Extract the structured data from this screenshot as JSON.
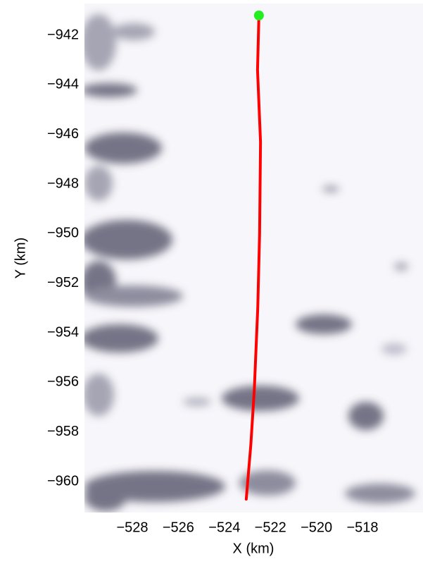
{
  "chart_data": {
    "type": "line",
    "xlabel": "X (km)",
    "ylabel": "Y (km)",
    "xlim": [
      -530.08,
      -515.37
    ],
    "ylim": [
      -961.25,
      -940.72
    ],
    "xticks": [
      {
        "value": -528,
        "label": "−528"
      },
      {
        "value": -526,
        "label": "−526"
      },
      {
        "value": -524,
        "label": "−524"
      },
      {
        "value": -522,
        "label": "−522"
      },
      {
        "value": -520,
        "label": "−520"
      },
      {
        "value": -518,
        "label": "−518"
      }
    ],
    "yticks": [
      {
        "value": -942,
        "label": "−942"
      },
      {
        "value": -944,
        "label": "−944"
      },
      {
        "value": -946,
        "label": "−946"
      },
      {
        "value": -948,
        "label": "−948"
      },
      {
        "value": -950,
        "label": "−950"
      },
      {
        "value": -952,
        "label": "−952"
      },
      {
        "value": -954,
        "label": "−954"
      },
      {
        "value": -956,
        "label": "−956"
      },
      {
        "value": -958,
        "label": "−958"
      },
      {
        "value": -960,
        "label": "−960"
      }
    ],
    "series": [
      {
        "color": "#ff0000",
        "x": [
          -523.05,
          -522.85,
          -522.7,
          -522.55,
          -522.47,
          -522.43,
          -522.56,
          -522.5
        ],
        "values": [
          -960.71,
          -958.5,
          -956.3,
          -953,
          -950,
          -946.3,
          -943.4,
          -941.2
        ]
      }
    ],
    "marker": {
      "x": -522.5,
      "y": -941.2,
      "color": "#22ee22"
    }
  }
}
